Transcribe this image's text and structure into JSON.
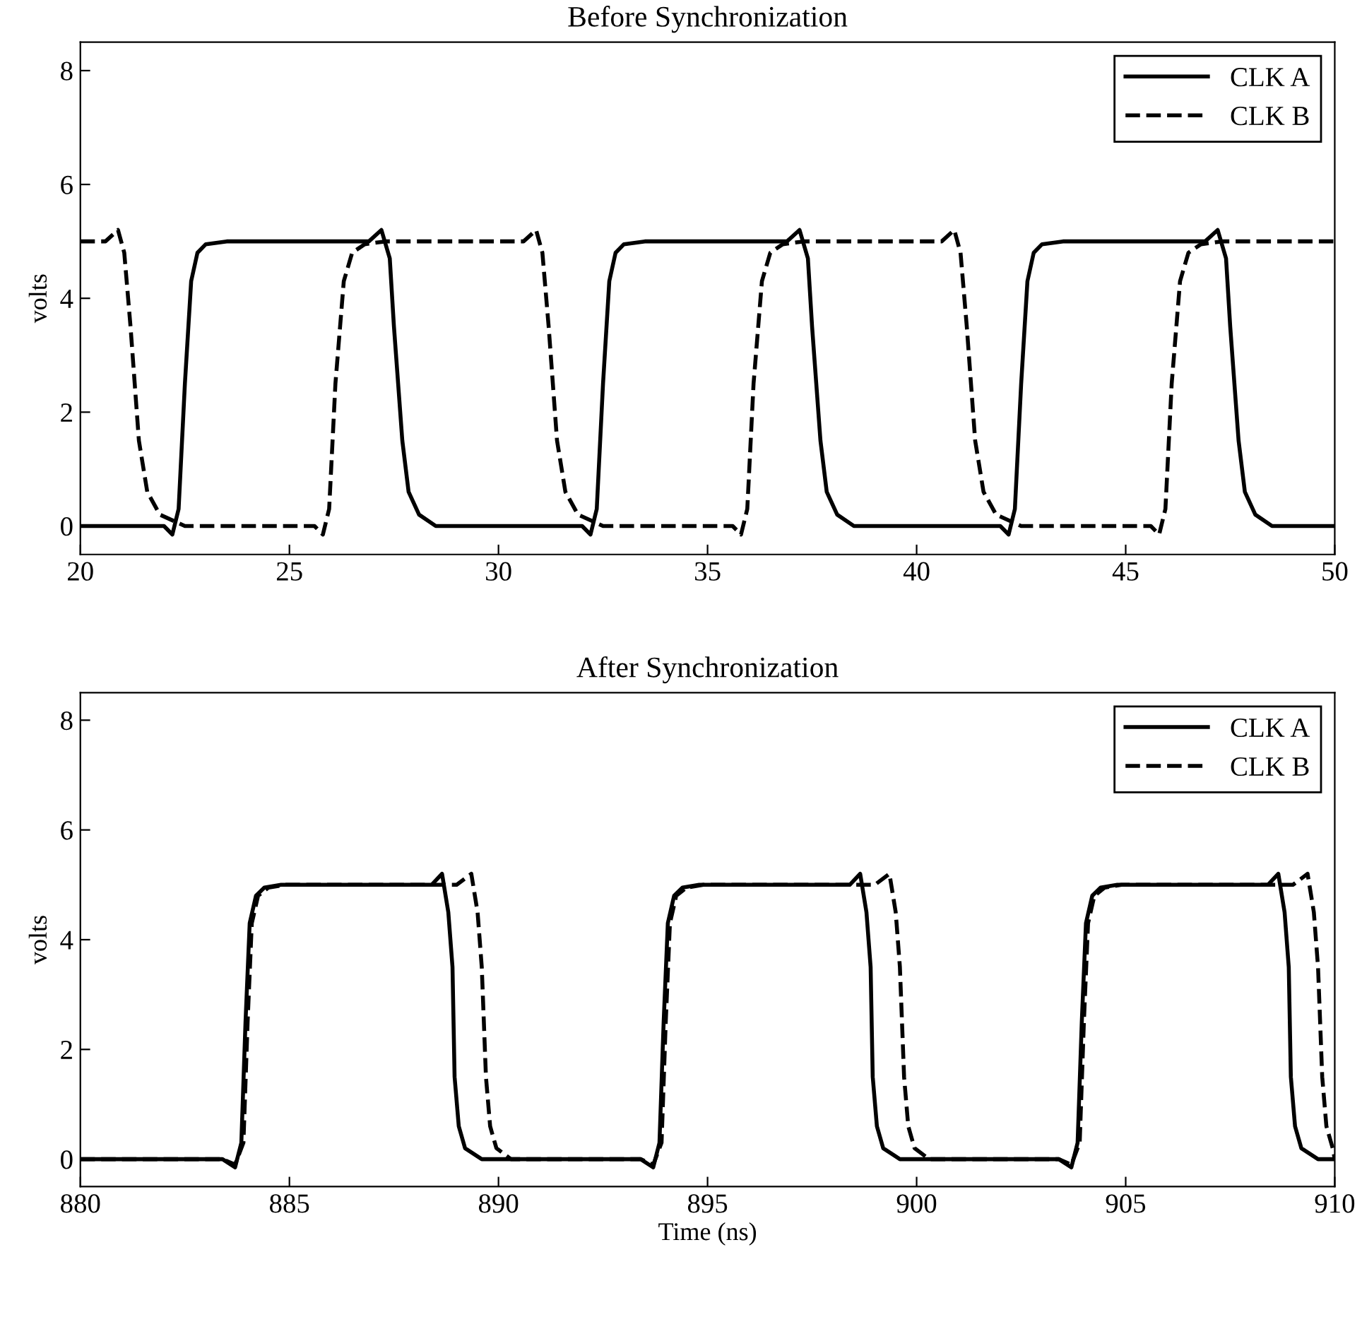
{
  "chart_data": [
    {
      "type": "line",
      "title": "Before Synchronization",
      "ylabel": "volts",
      "xlim": [
        20,
        50
      ],
      "xticks": [
        20,
        25,
        30,
        35,
        40,
        45,
        50
      ],
      "ylim": [
        -0.5,
        8.5
      ],
      "yticks": [
        0,
        2,
        4,
        6,
        8
      ],
      "grid": false,
      "legend": "top right",
      "marker": "none",
      "series": [
        {
          "name": "CLK A",
          "color": "#000000",
          "line_style": "solid",
          "x": [
            20,
            22.0,
            22.2,
            22.35,
            22.5,
            22.65,
            22.8,
            23.0,
            23.5,
            26.9,
            27.2,
            27.4,
            27.5,
            27.7,
            27.85,
            28.1,
            28.5,
            32.0,
            32.2,
            32.35,
            32.5,
            32.65,
            32.8,
            33.0,
            33.5,
            36.9,
            37.2,
            37.4,
            37.5,
            37.7,
            37.85,
            38.1,
            38.5,
            42.0,
            42.2,
            42.35,
            42.5,
            42.65,
            42.8,
            43.0,
            43.5,
            46.9,
            47.2,
            47.4,
            47.5,
            47.7,
            47.85,
            48.1,
            48.5,
            50
          ],
          "values": [
            0,
            0,
            -0.15,
            0.3,
            2.5,
            4.3,
            4.8,
            4.95,
            5,
            5,
            5.2,
            4.7,
            3.5,
            1.5,
            0.6,
            0.2,
            0,
            0,
            -0.15,
            0.3,
            2.5,
            4.3,
            4.8,
            4.95,
            5,
            5,
            5.2,
            4.7,
            3.5,
            1.5,
            0.6,
            0.2,
            0,
            0,
            -0.15,
            0.3,
            2.5,
            4.3,
            4.8,
            4.95,
            5,
            5,
            5.2,
            4.7,
            3.5,
            1.5,
            0.6,
            0.2,
            0,
            0
          ]
        },
        {
          "name": "CLK B",
          "color": "#000000",
          "line_style": "dashed",
          "x": [
            20,
            20.6,
            20.9,
            21.05,
            21.2,
            21.4,
            21.6,
            21.9,
            22.5,
            25.6,
            25.8,
            25.95,
            26.1,
            26.3,
            26.5,
            26.8,
            27.3,
            30.6,
            30.9,
            31.05,
            31.2,
            31.4,
            31.6,
            31.9,
            32.5,
            35.6,
            35.8,
            35.95,
            36.1,
            36.3,
            36.5,
            36.8,
            37.3,
            40.6,
            40.9,
            41.05,
            41.2,
            41.4,
            41.6,
            41.9,
            42.5,
            45.6,
            45.8,
            45.95,
            46.1,
            46.3,
            46.5,
            46.8,
            47.3,
            50
          ],
          "values": [
            5,
            5,
            5.2,
            4.8,
            3.5,
            1.5,
            0.6,
            0.2,
            0,
            0,
            -0.15,
            0.3,
            2.5,
            4.3,
            4.8,
            4.95,
            5,
            5,
            5.2,
            4.8,
            3.5,
            1.5,
            0.6,
            0.2,
            0,
            0,
            -0.15,
            0.3,
            2.5,
            4.3,
            4.8,
            4.95,
            5,
            5,
            5.2,
            4.8,
            3.5,
            1.5,
            0.6,
            0.2,
            0,
            0,
            -0.15,
            0.3,
            2.5,
            4.3,
            4.8,
            4.95,
            5,
            5
          ]
        }
      ]
    },
    {
      "type": "line",
      "title": "After Synchronization",
      "xlabel": "Time (ns)",
      "ylabel": "volts",
      "xlim": [
        880,
        910
      ],
      "xticks": [
        880,
        885,
        890,
        895,
        900,
        905,
        910
      ],
      "ylim": [
        -0.5,
        8.5
      ],
      "yticks": [
        0,
        2,
        4,
        6,
        8
      ],
      "grid": false,
      "legend": "top right",
      "marker": "none",
      "series": [
        {
          "name": "CLK A",
          "color": "#000000",
          "line_style": "solid",
          "x": [
            880,
            883.4,
            883.7,
            883.85,
            883.95,
            884.05,
            884.2,
            884.4,
            884.8,
            888.4,
            888.65,
            888.8,
            888.9,
            888.95,
            889.05,
            889.2,
            889.6,
            893.4,
            893.7,
            893.85,
            893.95,
            894.05,
            894.2,
            894.4,
            894.8,
            898.4,
            898.65,
            898.8,
            898.9,
            898.95,
            899.05,
            899.2,
            899.6,
            903.4,
            903.7,
            903.85,
            903.95,
            904.05,
            904.2,
            904.4,
            904.8,
            908.4,
            908.65,
            908.8,
            908.9,
            908.95,
            909.05,
            909.2,
            909.6,
            910
          ],
          "values": [
            0,
            0,
            -0.15,
            0.3,
            2.5,
            4.3,
            4.8,
            4.95,
            5,
            5,
            5.2,
            4.5,
            3.5,
            1.5,
            0.6,
            0.2,
            0,
            0,
            -0.15,
            0.3,
            2.5,
            4.3,
            4.8,
            4.95,
            5,
            5,
            5.2,
            4.5,
            3.5,
            1.5,
            0.6,
            0.2,
            0,
            0,
            -0.15,
            0.3,
            2.5,
            4.3,
            4.8,
            4.95,
            5,
            5,
            5.2,
            4.5,
            3.5,
            1.5,
            0.6,
            0.2,
            0,
            0
          ]
        },
        {
          "name": "CLK B",
          "color": "#000000",
          "line_style": "dashed",
          "x": [
            880,
            883.4,
            883.7,
            883.9,
            884.0,
            884.1,
            884.25,
            884.5,
            884.9,
            889.0,
            889.35,
            889.5,
            889.6,
            889.7,
            889.8,
            889.95,
            890.3,
            893.4,
            893.7,
            893.9,
            894.0,
            894.1,
            894.25,
            894.5,
            894.9,
            899.0,
            899.35,
            899.5,
            899.6,
            899.7,
            899.8,
            899.95,
            900.3,
            903.4,
            903.7,
            903.9,
            904.0,
            904.1,
            904.25,
            904.5,
            904.9,
            909.0,
            909.35,
            909.5,
            909.6,
            909.7,
            909.8,
            909.95,
            910
          ],
          "values": [
            0,
            0,
            -0.1,
            0.3,
            2.5,
            4.3,
            4.8,
            4.95,
            5,
            5,
            5.2,
            4.5,
            3.5,
            1.5,
            0.6,
            0.2,
            0,
            0,
            -0.1,
            0.3,
            2.5,
            4.3,
            4.8,
            4.95,
            5,
            5,
            5.2,
            4.5,
            3.5,
            1.5,
            0.6,
            0.2,
            0,
            0,
            -0.1,
            0.3,
            2.5,
            4.3,
            4.8,
            4.95,
            5,
            5,
            5.2,
            4.5,
            3.5,
            1.5,
            0.6,
            0.2,
            0
          ]
        }
      ]
    }
  ]
}
